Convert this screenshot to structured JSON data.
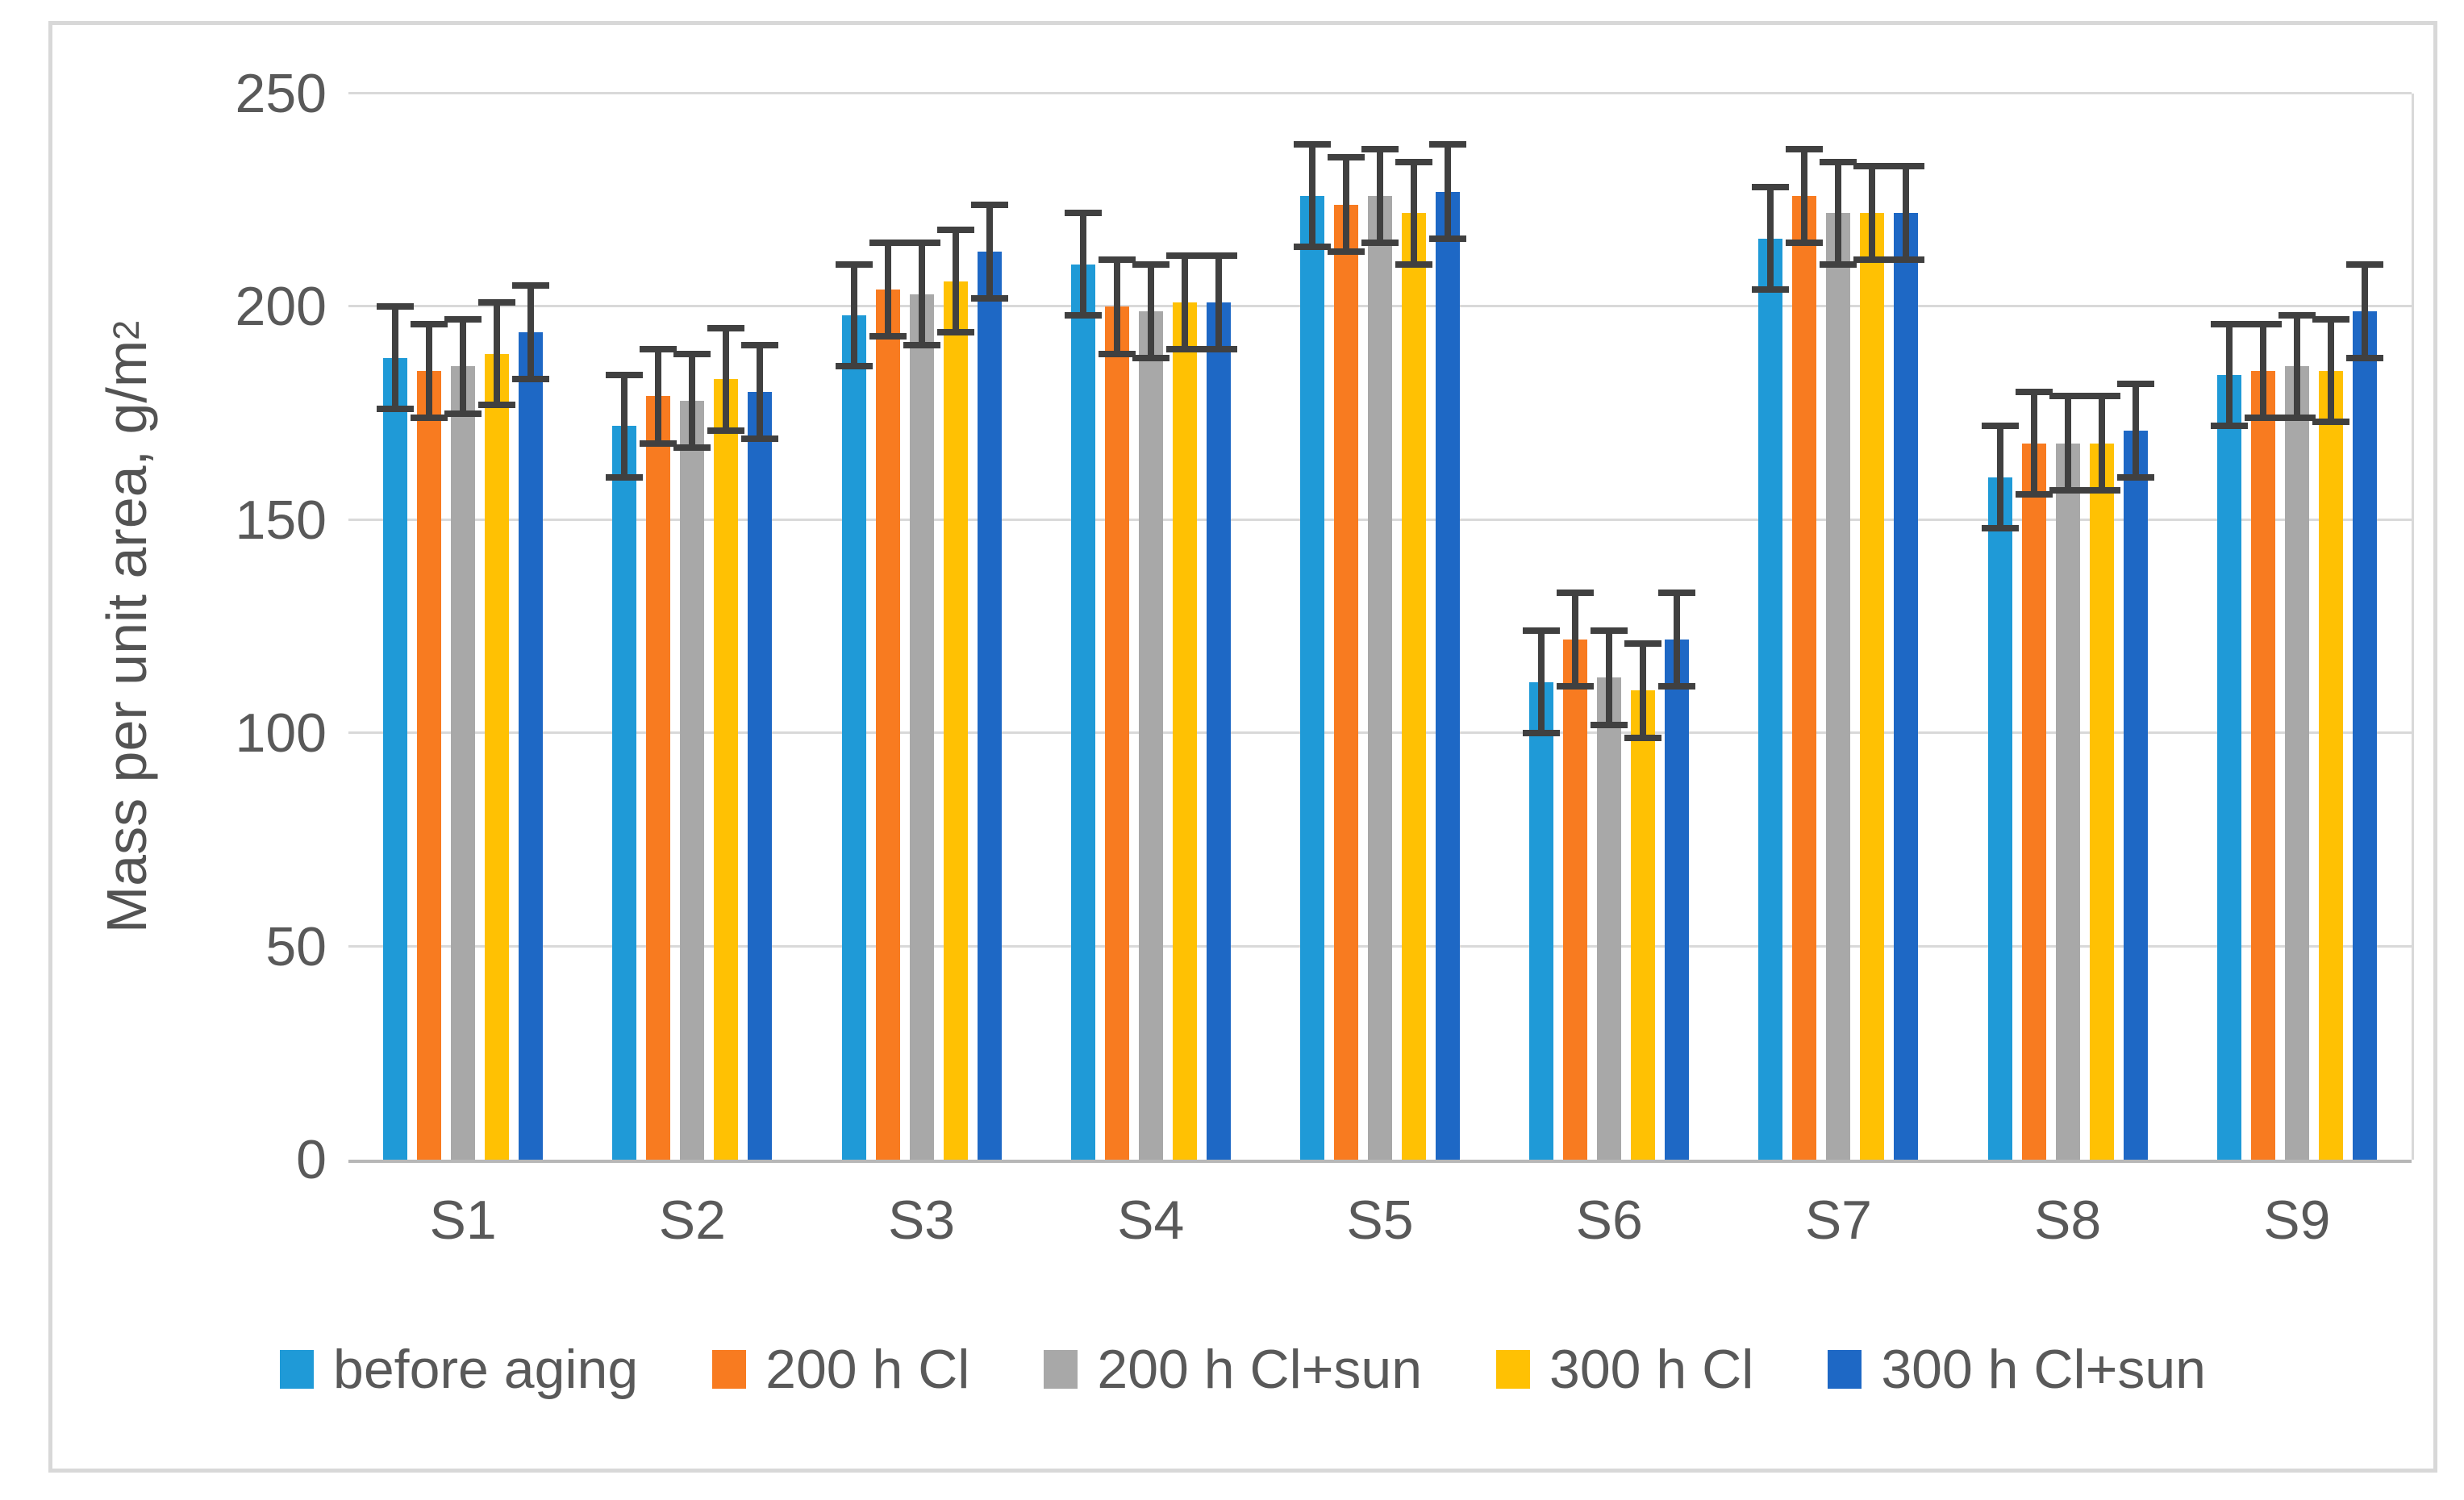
{
  "figure": {
    "background": "#ffffff",
    "border_color": "#d8d8d8"
  },
  "axes": {
    "y_title": "Mass per unit area, g/m",
    "y_title_sup": "2",
    "y_max": 250,
    "y_step": 50,
    "y_ticks": [
      "0",
      "50",
      "100",
      "150",
      "200",
      "250"
    ]
  },
  "styles": {
    "text_color": "#595959",
    "gridline_color": "#d9d9d9",
    "axis_line_color": "#b7b7b7",
    "error_bar_color": "#404040"
  },
  "chart_data": {
    "type": "bar",
    "title": "",
    "xlabel": "",
    "ylabel": "Mass per unit area, g/m2",
    "ylim": [
      0,
      250
    ],
    "grid": true,
    "legend_position": "bottom",
    "error_bars": true,
    "categories": [
      "S1",
      "S2",
      "S3",
      "S4",
      "S5",
      "S6",
      "S7",
      "S8",
      "S9"
    ],
    "series": [
      {
        "name": "before aging",
        "color": "#1f9ad7",
        "values": [
          188,
          172,
          198,
          210,
          226,
          112,
          216,
          160,
          184
        ],
        "errors": [
          12,
          12,
          12,
          12,
          12,
          12,
          12,
          12,
          12
        ]
      },
      {
        "name": "200 h Cl",
        "color": "#f87b20",
        "values": [
          185,
          179,
          204,
          200,
          224,
          122,
          226,
          168,
          185
        ],
        "errors": [
          11,
          11,
          11,
          11,
          11,
          11,
          11,
          12,
          11
        ]
      },
      {
        "name": "200 h Cl+sun",
        "color": "#a8a8a8",
        "values": [
          186,
          178,
          203,
          199,
          226,
          113,
          222,
          168,
          186
        ],
        "errors": [
          11,
          11,
          12,
          11,
          11,
          11,
          12,
          11,
          12
        ]
      },
      {
        "name": "300 h Cl",
        "color": "#ffc103",
        "values": [
          189,
          183,
          206,
          201,
          222,
          110,
          222,
          168,
          185
        ],
        "errors": [
          12,
          12,
          12,
          11,
          12,
          11,
          11,
          11,
          12
        ]
      },
      {
        "name": "300 h Cl+sun",
        "color": "#1e68c5",
        "values": [
          194,
          180,
          213,
          201,
          227,
          122,
          222,
          171,
          199
        ],
        "errors": [
          11,
          11,
          11,
          11,
          11,
          11,
          11,
          11,
          11
        ]
      }
    ]
  }
}
